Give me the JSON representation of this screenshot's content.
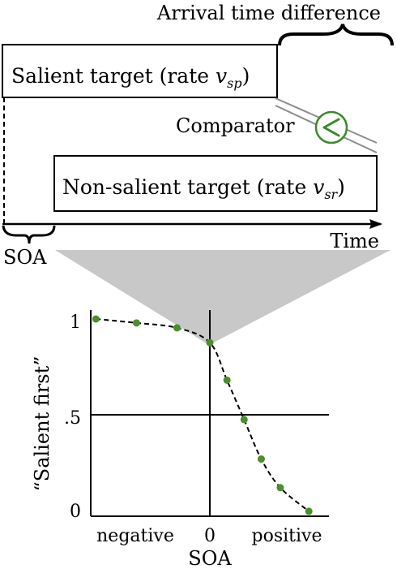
{
  "timeline": {
    "arrival_label": "Arrival time difference",
    "salient_label": "Salient target (rate ",
    "salient_rate": "v",
    "salient_rate_sub": "sp",
    "salient_close": ")",
    "comparator_label": "Comparator",
    "comparator_symbol": "<",
    "nonsalient_label": "Non-salient target (rate ",
    "nonsalient_rate": "v",
    "nonsalient_rate_sub": "sr",
    "nonsalient_close": ")",
    "soa_label": "SOA",
    "time_label": "Time"
  },
  "colors": {
    "comparator": "#3a8a2a",
    "points": "#4a8f2a",
    "funnel": "#c8c8c8",
    "comparator_lines": "#8c8c8c"
  },
  "chart_data": {
    "type": "scatter",
    "ylabel": "“Salient first”",
    "xlabel": "SOA",
    "x_tick_labels": [
      "negative",
      "0",
      "positive"
    ],
    "y_tick_labels": [
      "1",
      ".5",
      "0"
    ],
    "ylim": [
      0,
      1
    ],
    "xlim": [
      -6,
      6
    ],
    "points": [
      {
        "x": -5.9,
        "y": 1.0
      },
      {
        "x": -3.8,
        "y": 0.98
      },
      {
        "x": -1.7,
        "y": 0.955
      },
      {
        "x": 0.0,
        "y": 0.88
      },
      {
        "x": 0.9,
        "y": 0.69
      },
      {
        "x": 1.8,
        "y": 0.49
      },
      {
        "x": 2.7,
        "y": 0.29
      },
      {
        "x": 3.7,
        "y": 0.145
      },
      {
        "x": 5.2,
        "y": 0.025
      }
    ],
    "curve": {
      "style": "dashed",
      "shape": "sigmoid-decreasing"
    }
  }
}
